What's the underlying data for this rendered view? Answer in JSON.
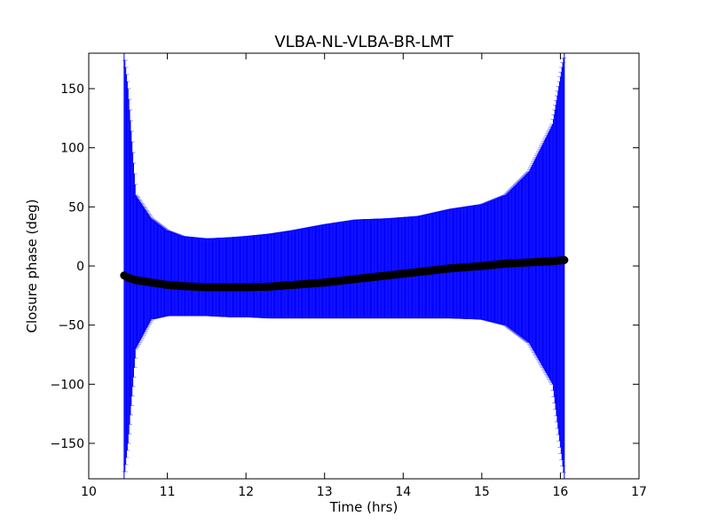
{
  "chart_data": {
    "type": "scatter",
    "title": "VLBA-NL-VLBA-BR-LMT",
    "xlabel": "Time (hrs)",
    "ylabel": "Closure phase (deg)",
    "xlim": [
      10,
      17
    ],
    "ylim": [
      -180,
      180
    ],
    "xticks": [
      10,
      11,
      12,
      13,
      14,
      15,
      16,
      17
    ],
    "xtick_labels": [
      "10",
      "11",
      "12",
      "13",
      "14",
      "15",
      "16",
      "17"
    ],
    "yticks": [
      -150,
      -100,
      -50,
      0,
      50,
      100,
      150
    ],
    "ytick_labels": [
      "−150",
      "−100",
      "−50",
      "0",
      "50",
      "100",
      "150"
    ],
    "grid": false,
    "legend": "none",
    "series": [
      {
        "marker": "circle",
        "color": "#000000",
        "error_color": "#0000ff",
        "x": [
          10.45,
          10.5,
          10.6,
          10.8,
          11.0,
          11.2,
          11.5,
          11.8,
          12.0,
          12.3,
          12.6,
          13.0,
          13.4,
          13.8,
          14.2,
          14.6,
          15.0,
          15.3,
          15.6,
          15.9,
          16.05
        ],
        "y": [
          -8,
          -10,
          -12,
          -14,
          -16,
          -17,
          -18,
          -18,
          -18,
          -17.5,
          -16,
          -14,
          -11,
          -8,
          -5,
          -2,
          0,
          2,
          3,
          4,
          5
        ],
        "err_upper": [
          180,
          150,
          60,
          40,
          30,
          25,
          23,
          24,
          25,
          27,
          30,
          35,
          39,
          40,
          42,
          48,
          52,
          60,
          80,
          120,
          180
        ],
        "err_lower": [
          -180,
          -150,
          -70,
          -45,
          -42,
          -42,
          -42,
          -43,
          -43,
          -44,
          -44,
          -44,
          -44,
          -44,
          -44,
          -44,
          -45,
          -50,
          -65,
          -100,
          -180
        ]
      }
    ]
  }
}
